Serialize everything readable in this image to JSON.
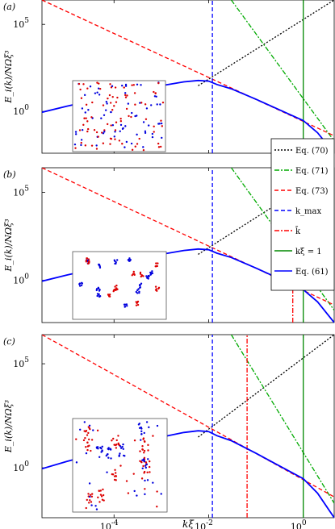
{
  "figure": {
    "xlabel": "kξ",
    "ylabel": "E_i(k)/NΩξ³"
  },
  "legend": [
    {
      "label": "Eq. (70)",
      "color": "#000000",
      "dash": "dot"
    },
    {
      "label": "Eq. (71)",
      "color": "#00aa00",
      "dash": "dashdot"
    },
    {
      "label": "Eq. (73)",
      "color": "#ff0000",
      "dash": "dash"
    },
    {
      "label": "k_max",
      "color": "#0000ff",
      "dash": "dash"
    },
    {
      "label": "k̄",
      "color": "#ff0000",
      "dash": "dashdot"
    },
    {
      "label": "kξ = 1",
      "color": "#008800",
      "dash": "solid"
    },
    {
      "label": "Eq. (61)",
      "color": "#0000ff",
      "dash": "solid"
    }
  ],
  "chart_data": [
    {
      "type": "line",
      "panel_label": "(a)",
      "xscale": "log",
      "yscale": "log",
      "xlim": [
        3e-06,
        4.5
      ],
      "ylim": [
        0.004,
        2500000
      ],
      "xticks": [
        "10^-4",
        "10^-2",
        "10^0"
      ],
      "yticks": [
        "10^0",
        "10^5"
      ],
      "kbar": null,
      "series": [
        {
          "name": "Eq. (70)",
          "x": [
            0.006,
            4.5
          ],
          "y": [
            30,
            2500000
          ]
        },
        {
          "name": "Eq. (71)",
          "x": [
            0.03,
            4.5
          ],
          "y": [
            2500000,
            0.02
          ]
        },
        {
          "name": "Eq. (73)",
          "x": [
            3e-06,
            4.5
          ],
          "y": [
            2500000,
            0.04
          ]
        },
        {
          "name": "k_max",
          "x": [
            0.012,
            0.012
          ],
          "y": [
            0.004,
            2500000
          ]
        },
        {
          "name": "kξ = 1",
          "x": [
            1,
            1
          ],
          "y": [
            0.004,
            2500000
          ]
        },
        {
          "name": "Eq. (61)",
          "x": [
            3e-06,
            1e-05,
            0.0001,
            0.001,
            0.003,
            0.006,
            0.01,
            0.015,
            0.03,
            0.1,
            0.3,
            1,
            2,
            4.5
          ],
          "y": [
            0.9,
            2,
            8,
            30,
            50,
            60,
            55,
            35,
            20,
            5,
            1.3,
            0.3,
            0.06,
            0.004
          ]
        }
      ]
    },
    {
      "type": "line",
      "panel_label": "(b)",
      "xscale": "log",
      "yscale": "log",
      "xlim": [
        3e-06,
        4.5
      ],
      "ylim": [
        0.004,
        2500000
      ],
      "xticks": [
        "10^-4",
        "10^-2",
        "10^0"
      ],
      "yticks": [
        "10^0",
        "10^5"
      ],
      "kbar": 0.6,
      "series": [
        {
          "name": "Eq. (70)",
          "x": [
            0.006,
            4.5
          ],
          "y": [
            30,
            2500000
          ]
        },
        {
          "name": "Eq. (71)",
          "x": [
            0.03,
            4.5
          ],
          "y": [
            2500000,
            0.02
          ]
        },
        {
          "name": "Eq. (73)",
          "x": [
            3e-06,
            4.5
          ],
          "y": [
            2500000,
            0.04
          ]
        },
        {
          "name": "k_max",
          "x": [
            0.012,
            0.012
          ],
          "y": [
            0.004,
            2500000
          ]
        },
        {
          "name": "k̄",
          "x": [
            0.6,
            0.6
          ],
          "y": [
            0.004,
            2500000
          ]
        },
        {
          "name": "kξ = 1",
          "x": [
            1,
            1
          ],
          "y": [
            0.004,
            2500000
          ]
        },
        {
          "name": "Eq. (61)",
          "x": [
            3e-06,
            1e-05,
            0.0001,
            0.001,
            0.003,
            0.006,
            0.01,
            0.015,
            0.03,
            0.1,
            0.3,
            1,
            2,
            4.5
          ],
          "y": [
            0.9,
            2,
            8,
            30,
            50,
            60,
            55,
            35,
            20,
            5,
            1.3,
            0.3,
            0.06,
            0.004
          ]
        }
      ]
    },
    {
      "type": "line",
      "panel_label": "(c)",
      "xscale": "log",
      "yscale": "log",
      "xlim": [
        3e-06,
        4.5
      ],
      "ylim": [
        0.004,
        2500000
      ],
      "xticks": [
        "10^-4",
        "10^-2",
        "10^0"
      ],
      "yticks": [
        "10^0",
        "10^5"
      ],
      "kbar": 0.065,
      "series": [
        {
          "name": "Eq. (70)",
          "x": [
            0.006,
            4.5
          ],
          "y": [
            30,
            2500000
          ]
        },
        {
          "name": "Eq. (71)",
          "x": [
            0.03,
            4.5
          ],
          "y": [
            2500000,
            0.02
          ]
        },
        {
          "name": "Eq. (73)",
          "x": [
            3e-06,
            4.5
          ],
          "y": [
            2500000,
            0.04
          ]
        },
        {
          "name": "k_max",
          "x": [
            0.012,
            0.012
          ],
          "y": [
            0.004,
            2500000
          ]
        },
        {
          "name": "k̄",
          "x": [
            0.065,
            0.065
          ],
          "y": [
            0.004,
            2500000
          ]
        },
        {
          "name": "kξ = 1",
          "x": [
            1,
            1
          ],
          "y": [
            0.004,
            2500000
          ]
        },
        {
          "name": "Eq. (61)",
          "x": [
            3e-06,
            1e-05,
            0.0001,
            0.001,
            0.003,
            0.006,
            0.01,
            0.015,
            0.03,
            0.1,
            0.3,
            1,
            2,
            4.5
          ],
          "y": [
            0.9,
            2,
            8,
            30,
            50,
            60,
            55,
            35,
            20,
            5,
            1.3,
            0.3,
            0.06,
            0.004
          ]
        }
      ]
    }
  ]
}
